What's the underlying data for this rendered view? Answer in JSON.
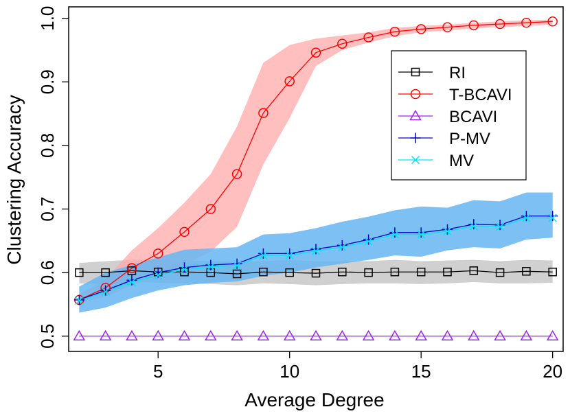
{
  "chart_data": {
    "type": "line",
    "title": "",
    "xlabel": "Average Degree",
    "ylabel": "Clustering Accuracy",
    "xlim": [
      1.6,
      20.4
    ],
    "ylim": [
      0.476,
      1.018
    ],
    "x_ticks": [
      5,
      10,
      15,
      20
    ],
    "y_ticks": [
      0.5,
      0.6,
      0.7,
      0.8,
      0.9,
      1.0
    ],
    "x_tick_labels": [
      "5",
      "10",
      "15",
      "20"
    ],
    "y_tick_labels": [
      "0.5",
      "0.6",
      "0.7",
      "0.8",
      "0.9",
      "1.0"
    ],
    "legend_position": "top-right",
    "x": [
      2,
      3,
      4,
      5,
      6,
      7,
      8,
      9,
      10,
      11,
      12,
      13,
      14,
      15,
      16,
      17,
      18,
      19,
      20
    ],
    "bands": [
      {
        "name": "RI",
        "color": "#c8c8c8",
        "opacity": 0.85,
        "lower": [
          0.583,
          0.582,
          0.585,
          0.584,
          0.583,
          0.582,
          0.58,
          0.583,
          0.582,
          0.58,
          0.582,
          0.583,
          0.583,
          0.582,
          0.583,
          0.585,
          0.583,
          0.583,
          0.584
        ],
        "upper": [
          0.615,
          0.618,
          0.62,
          0.62,
          0.619,
          0.618,
          0.617,
          0.618,
          0.62,
          0.618,
          0.618,
          0.618,
          0.62,
          0.618,
          0.619,
          0.62,
          0.618,
          0.62,
          0.619
        ]
      },
      {
        "name": "T-BCAVI",
        "color": "#ffaaaa",
        "opacity": 0.75,
        "lower": [
          0.552,
          0.562,
          0.58,
          0.595,
          0.613,
          0.633,
          0.672,
          0.77,
          0.843,
          0.925,
          0.95,
          0.962,
          0.972,
          0.978,
          0.981,
          0.984,
          0.986,
          0.988,
          0.99
        ],
        "upper": [
          0.565,
          0.59,
          0.635,
          0.67,
          0.71,
          0.755,
          0.83,
          0.93,
          0.958,
          0.968,
          0.973,
          0.978,
          0.985,
          0.988,
          0.99,
          0.993,
          0.995,
          0.997,
          0.998
        ]
      },
      {
        "name": "P-MV",
        "color": "#66b6f2",
        "opacity": 0.85,
        "lower": [
          0.537,
          0.545,
          0.56,
          0.572,
          0.58,
          0.584,
          0.586,
          0.595,
          0.6,
          0.608,
          0.614,
          0.62,
          0.627,
          0.625,
          0.635,
          0.64,
          0.638,
          0.652,
          0.655
        ],
        "upper": [
          0.578,
          0.6,
          0.612,
          0.624,
          0.636,
          0.638,
          0.64,
          0.66,
          0.662,
          0.67,
          0.68,
          0.688,
          0.698,
          0.704,
          0.702,
          0.714,
          0.712,
          0.726,
          0.726
        ]
      }
    ],
    "series": [
      {
        "name": "RI",
        "color": "#000000",
        "marker": "square",
        "values": [
          0.6,
          0.6,
          0.603,
          0.601,
          0.601,
          0.6,
          0.598,
          0.601,
          0.6,
          0.599,
          0.601,
          0.6,
          0.601,
          0.601,
          0.601,
          0.603,
          0.6,
          0.602,
          0.601
        ]
      },
      {
        "name": "T-BCAVI",
        "color": "#ff0000",
        "marker": "circle",
        "values": [
          0.557,
          0.576,
          0.607,
          0.63,
          0.664,
          0.7,
          0.755,
          0.851,
          0.901,
          0.946,
          0.96,
          0.97,
          0.979,
          0.983,
          0.986,
          0.989,
          0.991,
          0.993,
          0.995
        ]
      },
      {
        "name": "BCAVI",
        "color": "#a020f0",
        "marker": "triangle",
        "values": [
          0.5,
          0.5,
          0.5,
          0.5,
          0.5,
          0.5,
          0.5,
          0.5,
          0.5,
          0.5,
          0.5,
          0.5,
          0.5,
          0.5,
          0.5,
          0.5,
          0.5,
          0.5,
          0.5
        ]
      },
      {
        "name": "P-MV",
        "color": "#0000cd",
        "marker": "plus",
        "values": [
          0.557,
          0.572,
          0.588,
          0.6,
          0.608,
          0.612,
          0.614,
          0.63,
          0.63,
          0.637,
          0.643,
          0.652,
          0.663,
          0.663,
          0.668,
          0.676,
          0.675,
          0.689,
          0.689
        ]
      },
      {
        "name": "MV",
        "color": "#00e5ee",
        "marker": "cross",
        "values": [
          0.556,
          0.57,
          0.585,
          0.596,
          0.605,
          0.609,
          0.611,
          0.627,
          0.627,
          0.634,
          0.64,
          0.649,
          0.66,
          0.66,
          0.665,
          0.673,
          0.672,
          0.686,
          0.686
        ]
      }
    ]
  }
}
